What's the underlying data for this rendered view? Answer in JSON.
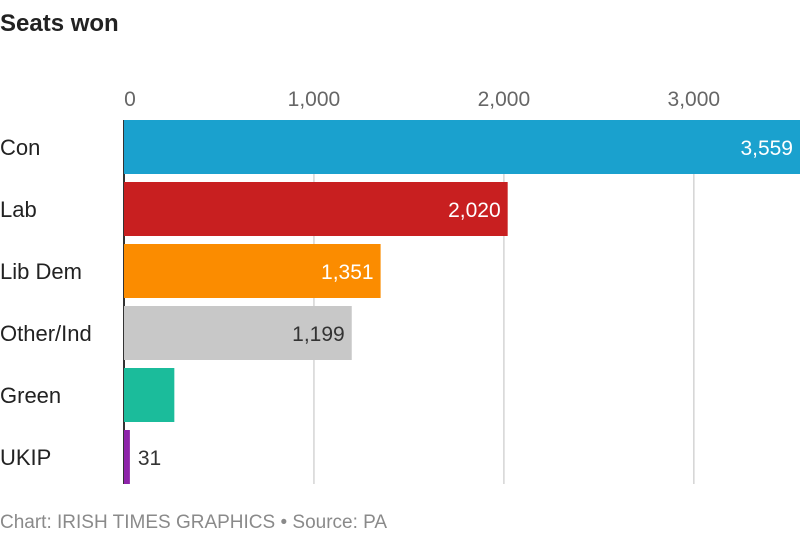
{
  "header": {
    "title": "Seats won"
  },
  "footer": {
    "credit": "Chart: IRISH TIMES GRAPHICS • Source: PA"
  },
  "chart_data": {
    "type": "bar",
    "orientation": "horizontal",
    "title": "Seats won",
    "categories": [
      "Con",
      "Lab",
      "Lib Dem",
      "Other/Ind",
      "Green",
      "UKIP"
    ],
    "values": [
      3559,
      2020,
      1351,
      1199,
      265,
      31
    ],
    "value_labels": [
      "3,559",
      "2,020",
      "1,351",
      "1,199",
      "265",
      "31"
    ],
    "colors": [
      "#1aa1ce",
      "#c81f20",
      "#fb8c00",
      "#c8c8c8",
      "#1bbc9b",
      "#8e24aa"
    ],
    "label_colors": [
      "#ffffff",
      "#ffffff",
      "#ffffff",
      "#333333",
      "#ffffff",
      "#333333"
    ],
    "xticks": [
      0,
      1000,
      2000,
      3000
    ],
    "xtick_labels": [
      "0",
      "1,000",
      "2,000",
      "3,000"
    ],
    "xlim": [
      0,
      3559
    ],
    "grid": true,
    "axis_position": "top"
  }
}
